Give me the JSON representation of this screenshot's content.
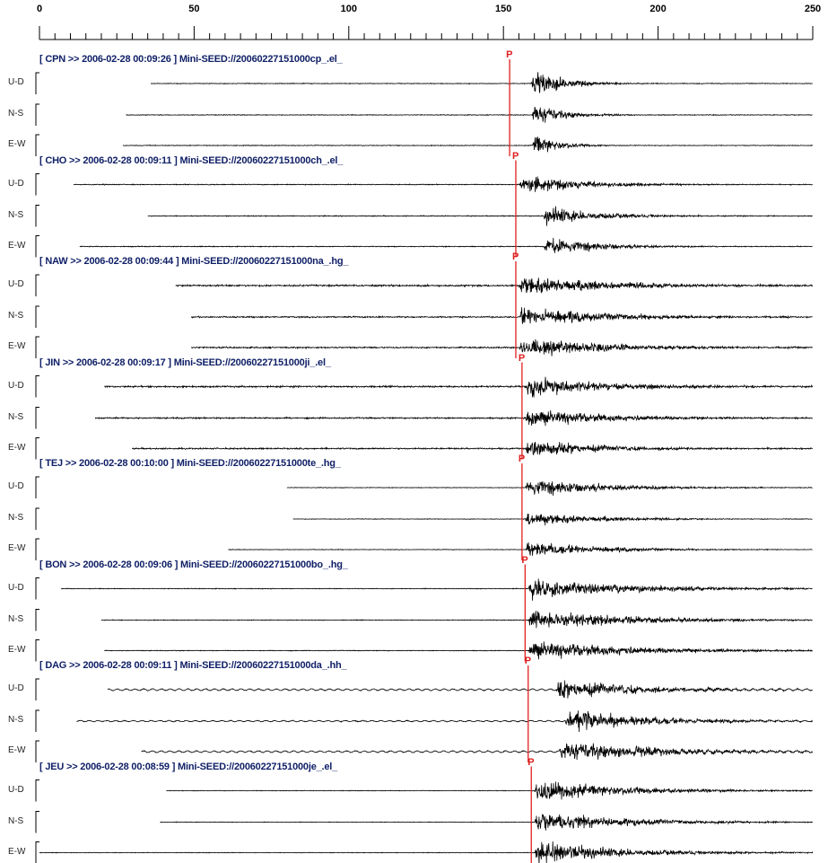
{
  "chart_data": {
    "type": "line",
    "xlim": [
      0,
      250
    ],
    "xticks": [
      "0",
      "50",
      "100",
      "150",
      "200",
      "250"
    ],
    "minor_tick_step": 5,
    "grid": false,
    "phase_label": "P",
    "colors": {
      "trace": "#000000",
      "header": "#0f1f66",
      "p_marker": "#e02020",
      "axis": "#000000"
    },
    "stations": [
      {
        "header": "[ CPN >> 2006-02-28 00:09:26 ] Mini-SEED://20060227151000cp_.el_",
        "p_time": 152,
        "components": [
          {
            "label": "U-D",
            "start": 36,
            "onset": 159,
            "amp": 1.0,
            "decay": 0.1,
            "noise": 0.05,
            "wobble": 0
          },
          {
            "label": "N-S",
            "start": 28,
            "onset": 159,
            "amp": 1.0,
            "decay": 0.11,
            "noise": 0.05,
            "wobble": 0
          },
          {
            "label": "E-W",
            "start": 27,
            "onset": 159,
            "amp": 0.9,
            "decay": 0.13,
            "noise": 0.05,
            "wobble": 0
          }
        ]
      },
      {
        "header": "[ CHO >> 2006-02-28 00:09:11 ] Mini-SEED://20060227151000ch_.el_",
        "p_time": 154,
        "components": [
          {
            "label": "U-D",
            "start": 11,
            "onset": 155,
            "amp": 0.7,
            "decay": 0.05,
            "noise": 0.06,
            "wobble": 0
          },
          {
            "label": "N-S",
            "start": 35,
            "onset": 163,
            "amp": 0.75,
            "decay": 0.06,
            "noise": 0.06,
            "wobble": 0
          },
          {
            "label": "E-W",
            "start": 13,
            "onset": 163,
            "amp": 0.7,
            "decay": 0.06,
            "noise": 0.06,
            "wobble": 0
          }
        ]
      },
      {
        "header": "[ NAW >> 2006-02-28 00:09:44 ] Mini-SEED://20060227151000na_.hg_",
        "p_time": 154,
        "components": [
          {
            "label": "U-D",
            "start": 44,
            "onset": 155,
            "amp": 0.75,
            "decay": 0.035,
            "noise": 0.12,
            "wobble": 0
          },
          {
            "label": "N-S",
            "start": 49,
            "onset": 155,
            "amp": 0.7,
            "decay": 0.035,
            "noise": 0.1,
            "wobble": 0
          },
          {
            "label": "E-W",
            "start": 49,
            "onset": 155,
            "amp": 0.7,
            "decay": 0.035,
            "noise": 0.1,
            "wobble": 0
          }
        ]
      },
      {
        "header": "[ JIN >> 2006-02-28 00:09:17 ] Mini-SEED://20060227151000ji_.el_",
        "p_time": 156,
        "components": [
          {
            "label": "U-D",
            "start": 21,
            "onset": 157,
            "amp": 0.8,
            "decay": 0.04,
            "noise": 0.12,
            "wobble": 0
          },
          {
            "label": "N-S",
            "start": 18,
            "onset": 157,
            "amp": 0.7,
            "decay": 0.04,
            "noise": 0.1,
            "wobble": 0
          },
          {
            "label": "E-W",
            "start": 30,
            "onset": 157,
            "amp": 0.7,
            "decay": 0.045,
            "noise": 0.1,
            "wobble": 0
          }
        ]
      },
      {
        "header": "[ TEJ >> 2006-02-28 00:10:00 ] Mini-SEED://20060227151000te_.hg_",
        "p_time": 156,
        "components": [
          {
            "label": "U-D",
            "start": 80,
            "onset": 157,
            "amp": 0.65,
            "decay": 0.04,
            "noise": 0.04,
            "wobble": 0
          },
          {
            "label": "N-S",
            "start": 82,
            "onset": 157,
            "amp": 0.55,
            "decay": 0.045,
            "noise": 0.04,
            "wobble": 0
          },
          {
            "label": "E-W",
            "start": 61,
            "onset": 157,
            "amp": 0.6,
            "decay": 0.045,
            "noise": 0.04,
            "wobble": 0
          }
        ]
      },
      {
        "header": "[ BON >> 2006-02-28 00:09:06 ] Mini-SEED://20060227151000bo_.hg_",
        "p_time": 157,
        "components": [
          {
            "label": "U-D",
            "start": 7,
            "onset": 158,
            "amp": 0.75,
            "decay": 0.03,
            "noise": 0.05,
            "wobble": 0
          },
          {
            "label": "N-S",
            "start": 20,
            "onset": 158,
            "amp": 0.7,
            "decay": 0.03,
            "noise": 0.05,
            "wobble": 0
          },
          {
            "label": "E-W",
            "start": 21,
            "onset": 158,
            "amp": 0.7,
            "decay": 0.03,
            "noise": 0.05,
            "wobble": 0
          }
        ]
      },
      {
        "header": "[ DAG >> 2006-02-28 00:09:11 ] Mini-SEED://20060227151000da_.hh_",
        "p_time": 158,
        "components": [
          {
            "label": "U-D",
            "start": 22,
            "onset": 167,
            "amp": 0.75,
            "decay": 0.04,
            "noise": 0.05,
            "wobble": 0.12
          },
          {
            "label": "N-S",
            "start": 12,
            "onset": 170,
            "amp": 0.85,
            "decay": 0.04,
            "noise": 0.05,
            "wobble": 0.08
          },
          {
            "label": "E-W",
            "start": 33,
            "onset": 168,
            "amp": 0.85,
            "decay": 0.035,
            "noise": 0.05,
            "wobble": 0.12
          }
        ]
      },
      {
        "header": "[ JEU >> 2006-02-28 00:08:59 ] Mini-SEED://20060227151000je_.el_",
        "p_time": 159,
        "components": [
          {
            "label": "U-D",
            "start": 41,
            "onset": 160,
            "amp": 0.75,
            "decay": 0.035,
            "noise": 0.04,
            "wobble": 0
          },
          {
            "label": "N-S",
            "start": 39,
            "onset": 160,
            "amp": 0.75,
            "decay": 0.035,
            "noise": 0.04,
            "wobble": 0
          },
          {
            "label": "E-W",
            "start": 0,
            "onset": 160,
            "amp": 0.8,
            "decay": 0.035,
            "noise": 0.04,
            "wobble": 0
          }
        ]
      }
    ]
  }
}
